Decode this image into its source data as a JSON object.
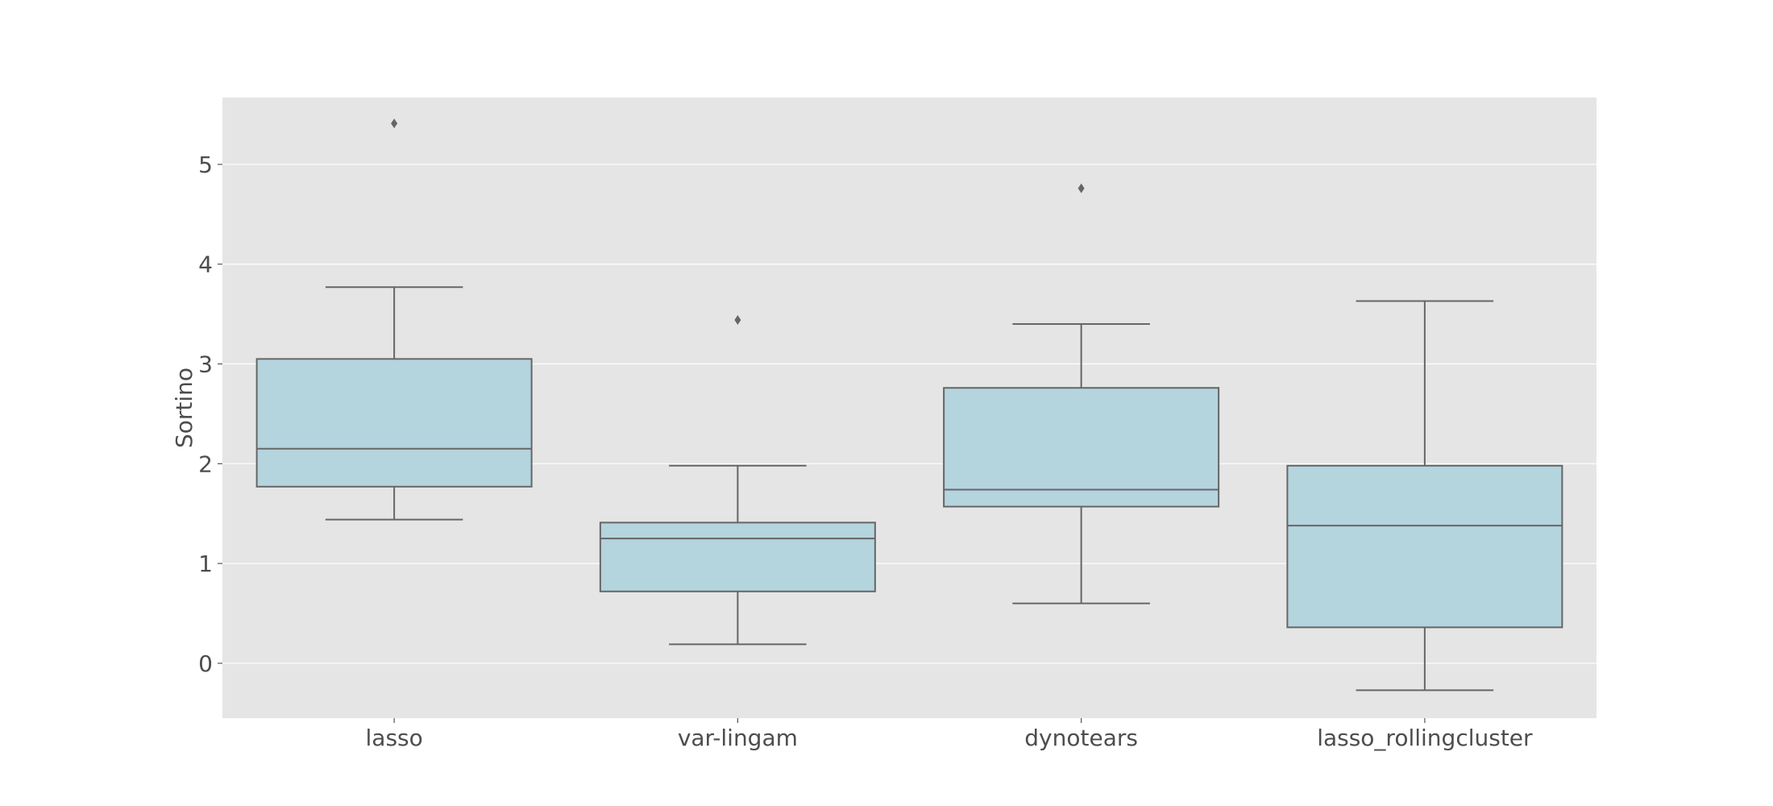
{
  "chart_data": {
    "type": "box",
    "title": "",
    "xlabel": "",
    "ylabel": "Sortino",
    "ylim": [
      -0.55,
      5.67
    ],
    "yticks": [
      0,
      1,
      2,
      3,
      4,
      5
    ],
    "grid": true,
    "legend": "none",
    "categories": [
      "lasso",
      "var-lingam",
      "dynotears",
      "lasso_rollingcluster"
    ],
    "boxes": [
      {
        "category": "lasso",
        "whisker_low": 1.44,
        "q1": 1.77,
        "median": 2.15,
        "q3": 3.05,
        "whisker_high": 3.77,
        "outliers": [
          5.41
        ]
      },
      {
        "category": "var-lingam",
        "whisker_low": 0.19,
        "q1": 0.72,
        "median": 1.25,
        "q3": 1.41,
        "whisker_high": 1.98,
        "outliers": [
          3.44
        ]
      },
      {
        "category": "dynotears",
        "whisker_low": 0.6,
        "q1": 1.57,
        "median": 1.74,
        "q3": 2.76,
        "whisker_high": 3.4,
        "outliers": [
          4.76
        ]
      },
      {
        "category": "lasso_rollingcluster",
        "whisker_low": -0.27,
        "q1": 0.36,
        "median": 1.38,
        "q3": 1.98,
        "whisker_high": 3.63,
        "outliers": []
      }
    ],
    "colors": {
      "panel": "#e5e5e5",
      "grid": "#ffffff",
      "box_fill": "#b4d4de",
      "box_edge": "#666666",
      "tick_text": "#4d4d4d"
    }
  }
}
